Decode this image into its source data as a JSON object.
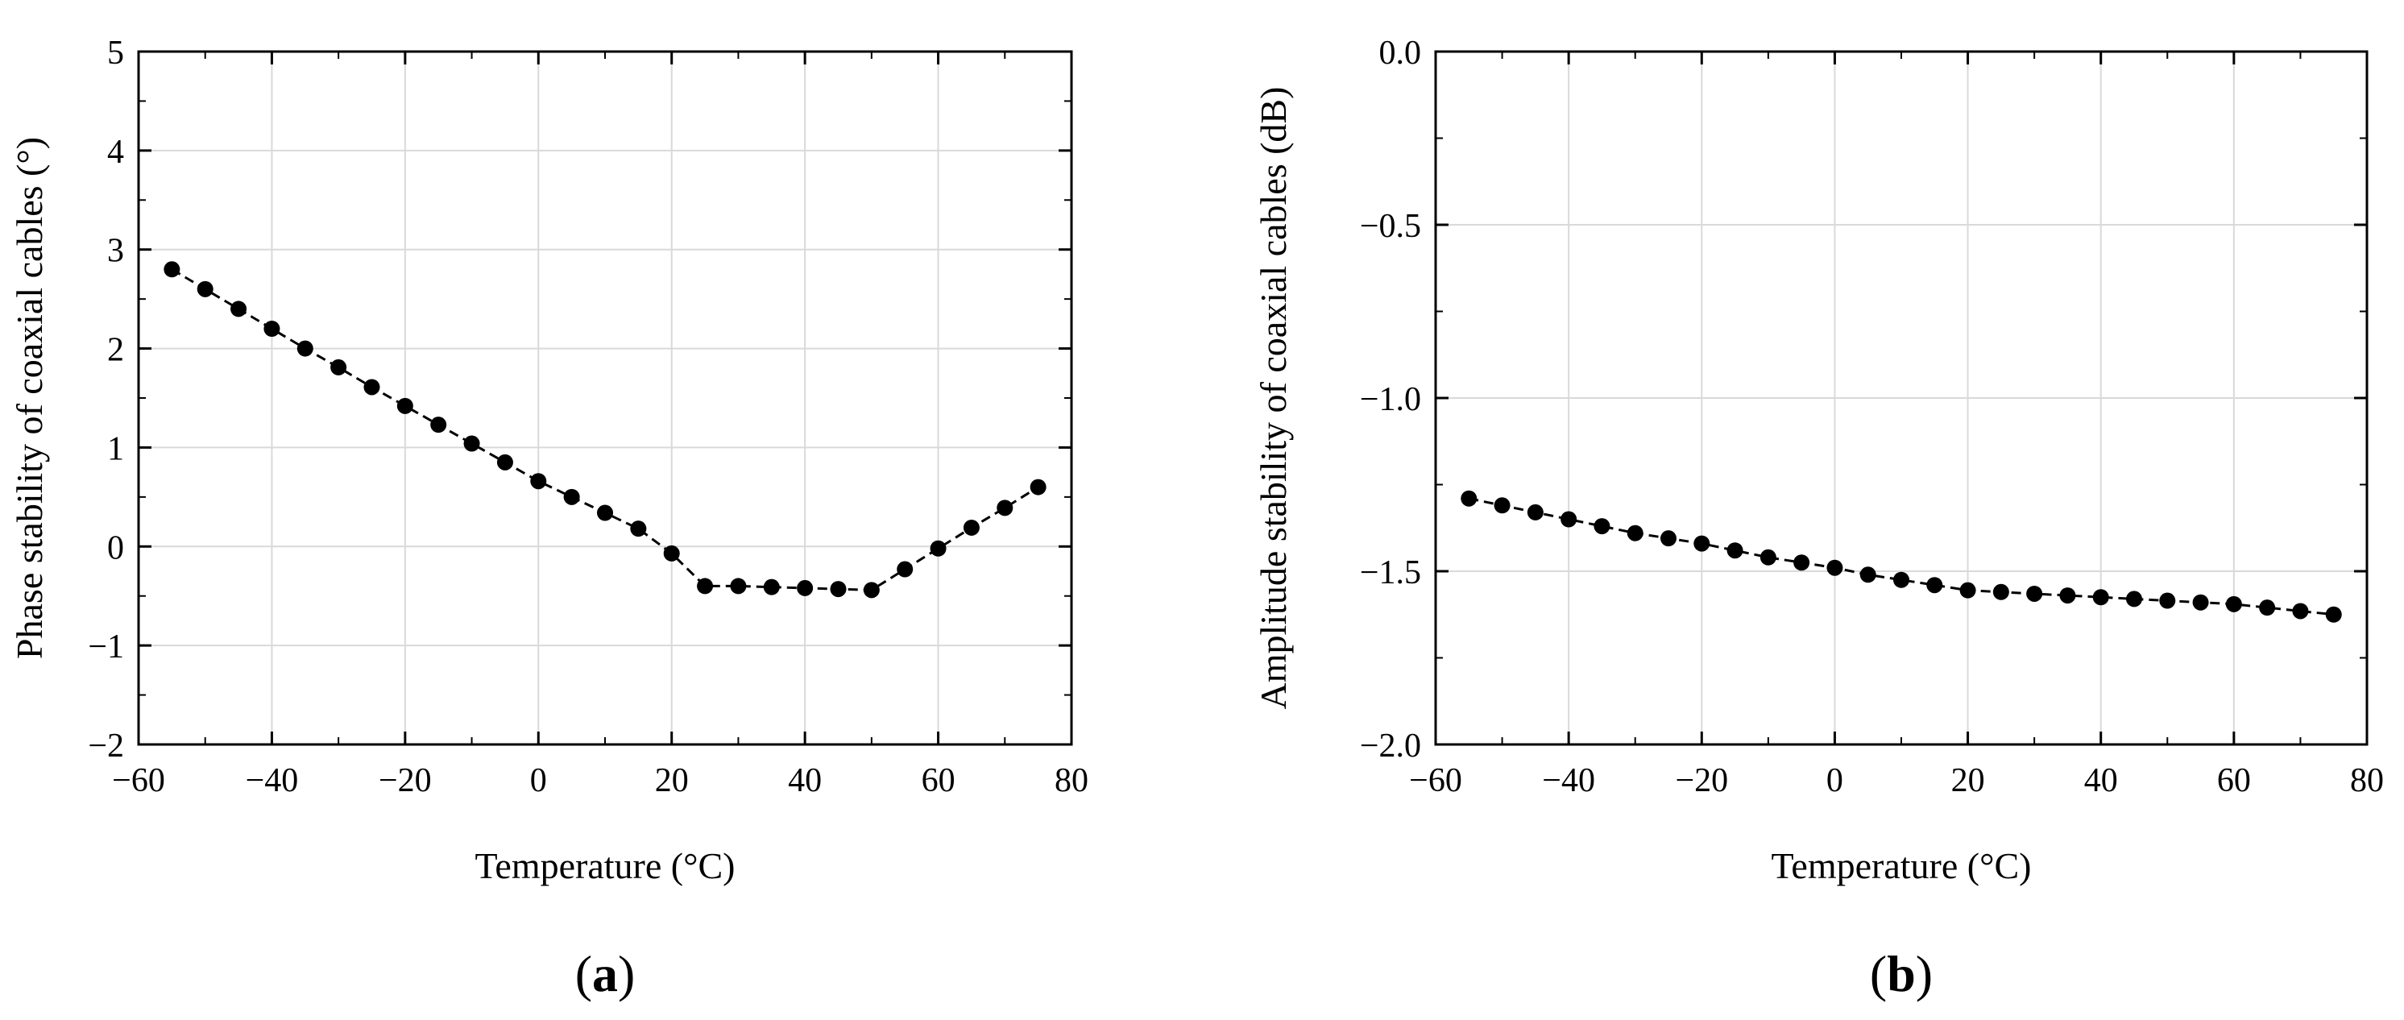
{
  "chart_data": [
    {
      "type": "line",
      "panel_label": "a",
      "xlabel": "Temperature (°C)",
      "ylabel": "Phase stability of coaxial cables (°)",
      "xlim": [
        -60,
        80
      ],
      "ylim": [
        -2,
        5
      ],
      "xticks": [
        -60,
        -40,
        -20,
        0,
        20,
        40,
        60,
        80
      ],
      "yticks": [
        -2,
        -1,
        0,
        1,
        2,
        3,
        4,
        5
      ],
      "xtick_labels": [
        "−60",
        "−40",
        "−20",
        "0",
        "20",
        "40",
        "60",
        "80"
      ],
      "ytick_labels": [
        "−2",
        "−1",
        "0",
        "1",
        "2",
        "3",
        "4",
        "5"
      ],
      "grid": true,
      "series": [
        {
          "name": "Phase stability",
          "marker": "circle",
          "line_style": "dashed",
          "color": "#000000",
          "x": [
            -55,
            -50,
            -45,
            -40,
            -35,
            -30,
            -25,
            -20,
            -15,
            -10,
            -5,
            0,
            5,
            10,
            15,
            20,
            25,
            30,
            35,
            40,
            45,
            50,
            55,
            60,
            65,
            70,
            75
          ],
          "y": [
            2.8,
            2.6,
            2.4,
            2.2,
            2.0,
            1.81,
            1.61,
            1.42,
            1.23,
            1.04,
            0.85,
            0.66,
            0.5,
            0.34,
            0.18,
            -0.07,
            -0.4,
            -0.4,
            -0.41,
            -0.42,
            -0.43,
            -0.44,
            -0.23,
            -0.02,
            0.19,
            0.39,
            0.6
          ]
        }
      ]
    },
    {
      "type": "line",
      "panel_label": "b",
      "xlabel": "Temperature (°C)",
      "ylabel": "Amplitude stability of coaxial cables (dB)",
      "xlim": [
        -60,
        80
      ],
      "ylim": [
        -2.0,
        0.0
      ],
      "xticks": [
        -60,
        -40,
        -20,
        0,
        20,
        40,
        60,
        80
      ],
      "yticks": [
        -2.0,
        -1.5,
        -1.0,
        -0.5,
        0.0
      ],
      "xtick_labels": [
        "−60",
        "−40",
        "−20",
        "0",
        "20",
        "40",
        "60",
        "80"
      ],
      "ytick_labels": [
        "−2.0",
        "−1.5",
        "−1.0",
        "−0.5",
        "0.0"
      ],
      "grid": true,
      "series": [
        {
          "name": "Amplitude stability",
          "marker": "circle",
          "line_style": "dashed",
          "color": "#000000",
          "x": [
            -55,
            -50,
            -45,
            -40,
            -35,
            -30,
            -25,
            -20,
            -15,
            -10,
            -5,
            0,
            5,
            10,
            15,
            20,
            25,
            30,
            35,
            40,
            45,
            50,
            55,
            60,
            65,
            70,
            75
          ],
          "y": [
            -1.29,
            -1.31,
            -1.33,
            -1.35,
            -1.37,
            -1.39,
            -1.405,
            -1.42,
            -1.44,
            -1.46,
            -1.475,
            -1.49,
            -1.51,
            -1.525,
            -1.54,
            -1.555,
            -1.56,
            -1.565,
            -1.57,
            -1.575,
            -1.58,
            -1.585,
            -1.59,
            -1.595,
            -1.605,
            -1.615,
            -1.625
          ]
        }
      ]
    }
  ],
  "style": {
    "grid_color": "#d9d9d9",
    "axis_color": "#000000",
    "marker_color": "#000000"
  }
}
